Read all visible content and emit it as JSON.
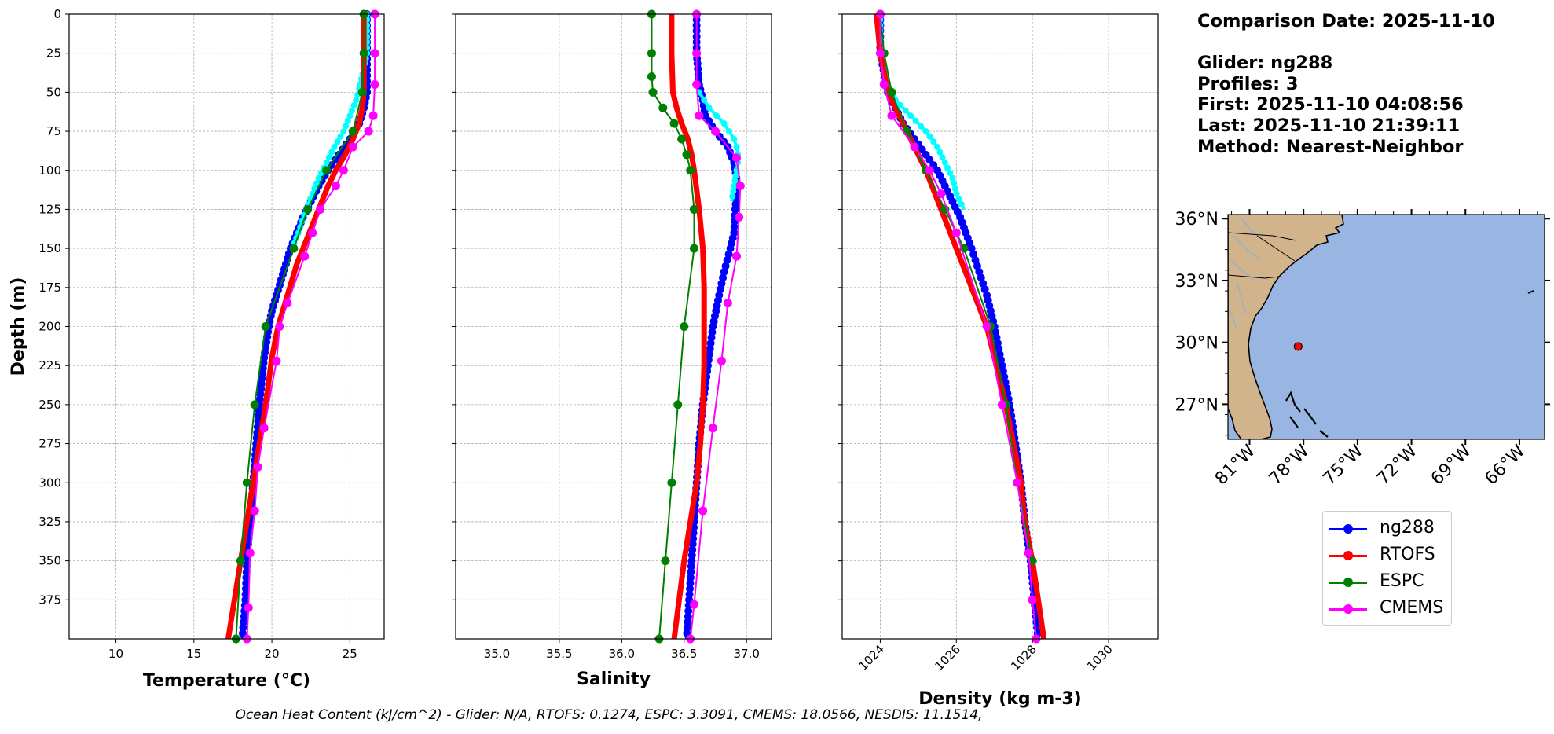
{
  "colors": {
    "glider": "#0000ff",
    "glider_alt": "#00ffff",
    "rtofs": "#ff0000",
    "espc": "#008000",
    "cmems": "#ff00ff",
    "land": "#d2b48c",
    "ocean": "#98b6e1",
    "rivers": "#9cb0c4",
    "grid": "#b0b0b0"
  },
  "info": {
    "date": "Comparison Date: 2025-11-10",
    "glider": "Glider: ng288",
    "profiles": "Profiles: 3",
    "first": "First: 2025-11-10 04:08:56",
    "last": "Last: 2025-11-10 21:39:11",
    "method": "Method: Nearest-Neighbor"
  },
  "legend": [
    {
      "label": "ng288",
      "color": "#0000ff"
    },
    {
      "label": "RTOFS",
      "color": "#ff0000"
    },
    {
      "label": "ESPC",
      "color": "#008000"
    },
    {
      "label": "CMEMS",
      "color": "#ff00ff"
    }
  ],
  "footer": "Ocean Heat Content (kJ/cm^2) - Glider: N/A,  RTOFS: 0.1274,  ESPC: 3.3091,  CMEMS: 18.0566,  NESDIS: 11.1514,",
  "chart_data": [
    {
      "type": "line",
      "panel": "temperature",
      "xlabel": "Temperature (°C)",
      "ylabel": "Depth (m)",
      "xlim": [
        7,
        27.2
      ],
      "ylim": [
        400,
        0
      ],
      "xticks": [
        10,
        15,
        20,
        25
      ],
      "yticks": [
        0,
        25,
        50,
        75,
        100,
        125,
        150,
        175,
        200,
        225,
        250,
        275,
        300,
        325,
        350,
        375
      ],
      "grid": true,
      "series": [
        {
          "name": "ng288",
          "color": "#0000ff",
          "depth": [
            0,
            25,
            50,
            60,
            70,
            80,
            90,
            100,
            110,
            120,
            130,
            140,
            150,
            160,
            170,
            180,
            190,
            200,
            220,
            250,
            275,
            300,
            325,
            350,
            375,
            400
          ],
          "values": [
            26.1,
            26.1,
            26.1,
            25.9,
            25.6,
            25.0,
            24.3,
            23.6,
            23.0,
            22.5,
            22.0,
            21.6,
            21.2,
            20.9,
            20.6,
            20.3,
            20.0,
            19.8,
            19.5,
            19.2,
            19.0,
            18.8,
            18.6,
            18.4,
            18.3,
            18.1
          ]
        },
        {
          "name": "ng288 (profile 2)",
          "color": "#00ffff",
          "depth": [
            0,
            25,
            48,
            55,
            65,
            75,
            85,
            95,
            105,
            115,
            125,
            140,
            150
          ],
          "values": [
            26.1,
            26.1,
            25.6,
            25.4,
            25.0,
            24.6,
            24.0,
            23.5,
            23.0,
            22.6,
            22.2,
            21.7,
            21.3
          ]
        },
        {
          "name": "RTOFS",
          "color": "#ff0000",
          "depth": [
            0,
            25,
            50,
            60,
            70,
            80,
            90,
            100,
            110,
            120,
            130,
            140,
            150,
            160,
            170,
            180,
            190,
            200,
            220,
            250,
            275,
            300,
            325,
            350,
            375,
            400
          ],
          "values": [
            25.9,
            25.9,
            25.9,
            25.8,
            25.6,
            25.2,
            24.7,
            24.1,
            23.6,
            23.2,
            22.8,
            22.4,
            22.0,
            21.6,
            21.3,
            21.0,
            20.7,
            20.4,
            20.0,
            19.6,
            19.2,
            18.8,
            18.4,
            18.0,
            17.6,
            17.2
          ]
        },
        {
          "name": "ESPC",
          "color": "#008000",
          "depth": [
            0,
            25,
            50,
            75,
            100,
            125,
            150,
            200,
            250,
            300,
            350,
            400
          ],
          "values": [
            25.9,
            25.9,
            25.8,
            25.2,
            23.5,
            22.3,
            21.4,
            19.6,
            18.9,
            18.4,
            18.0,
            17.7
          ]
        },
        {
          "name": "CMEMS",
          "color": "#ff00ff",
          "depth": [
            0,
            25,
            45,
            65,
            75,
            85,
            100,
            110,
            125,
            140,
            155,
            185,
            200,
            222,
            265,
            290,
            318,
            345,
            380,
            400
          ],
          "values": [
            26.6,
            26.6,
            26.6,
            26.5,
            26.2,
            25.2,
            24.6,
            24.1,
            23.1,
            22.6,
            22.1,
            21.0,
            20.5,
            20.3,
            19.5,
            19.1,
            18.9,
            18.6,
            18.5,
            18.4
          ]
        }
      ]
    },
    {
      "type": "line",
      "panel": "salinity",
      "xlabel": "Salinity",
      "xlim": [
        34.67,
        37.2
      ],
      "ylim": [
        400,
        0
      ],
      "xticks": [
        35.0,
        35.5,
        36.0,
        36.5,
        37.0
      ],
      "grid": true,
      "series": [
        {
          "name": "ng288",
          "color": "#0000ff",
          "depth": [
            0,
            25,
            45,
            55,
            65,
            75,
            85,
            95,
            105,
            115,
            125,
            140,
            150,
            165,
            180,
            200,
            225,
            250,
            275,
            300,
            325,
            350,
            375,
            400
          ],
          "values": [
            36.6,
            36.6,
            36.62,
            36.65,
            36.67,
            36.75,
            36.85,
            36.9,
            36.92,
            36.92,
            36.91,
            36.9,
            36.87,
            36.82,
            36.78,
            36.73,
            36.69,
            36.65,
            36.62,
            36.6,
            36.58,
            36.56,
            36.54,
            36.52
          ]
        },
        {
          "name": "ng288 (profile 2)",
          "color": "#00ffff",
          "depth": [
            50,
            55,
            60,
            65,
            70,
            75,
            80,
            85,
            90,
            95,
            100,
            110,
            120
          ],
          "values": [
            36.62,
            36.66,
            36.7,
            36.76,
            36.82,
            36.86,
            36.9,
            36.92,
            36.93,
            36.93,
            36.92,
            36.9,
            36.88
          ]
        },
        {
          "name": "RTOFS",
          "color": "#ff0000",
          "depth": [
            0,
            25,
            50,
            60,
            70,
            80,
            90,
            100,
            125,
            150,
            175,
            200,
            225,
            250,
            275,
            300,
            325,
            350,
            375,
            400
          ],
          "values": [
            36.4,
            36.4,
            36.41,
            36.44,
            36.48,
            36.53,
            36.56,
            36.58,
            36.62,
            36.65,
            36.66,
            36.66,
            36.66,
            36.65,
            36.63,
            36.6,
            36.55,
            36.5,
            36.46,
            36.42
          ]
        },
        {
          "name": "ESPC",
          "color": "#008000",
          "depth": [
            0,
            25,
            40,
            50,
            60,
            70,
            80,
            90,
            100,
            125,
            150,
            200,
            250,
            300,
            350,
            400
          ],
          "values": [
            36.24,
            36.24,
            36.24,
            36.25,
            36.33,
            36.42,
            36.48,
            36.52,
            36.55,
            36.58,
            36.58,
            36.5,
            36.45,
            36.4,
            36.35,
            36.3
          ]
        },
        {
          "name": "CMEMS",
          "color": "#ff00ff",
          "depth": [
            0,
            25,
            45,
            65,
            75,
            92,
            110,
            130,
            155,
            185,
            222,
            265,
            318,
            378,
            400
          ],
          "values": [
            36.6,
            36.6,
            36.6,
            36.62,
            36.75,
            36.92,
            36.95,
            36.94,
            36.92,
            36.85,
            36.8,
            36.73,
            36.65,
            36.58,
            36.55
          ]
        }
      ]
    },
    {
      "type": "line",
      "panel": "density",
      "xlabel": "Density (kg m-3)",
      "xlim": [
        1023.0,
        1031.3
      ],
      "ylim": [
        400,
        0
      ],
      "xticks": [
        1024,
        1026,
        1028,
        1030
      ],
      "grid": true,
      "series": [
        {
          "name": "ng288",
          "color": "#0000ff",
          "depth": [
            0,
            25,
            50,
            60,
            70,
            80,
            90,
            100,
            110,
            120,
            130,
            140,
            150,
            165,
            180,
            200,
            225,
            250,
            275,
            300,
            325,
            350,
            375,
            400
          ],
          "values": [
            1024.0,
            1024.0,
            1024.2,
            1024.4,
            1024.6,
            1024.9,
            1025.2,
            1025.5,
            1025.7,
            1025.9,
            1026.1,
            1026.25,
            1026.4,
            1026.6,
            1026.8,
            1027.0,
            1027.2,
            1027.4,
            1027.55,
            1027.7,
            1027.8,
            1027.95,
            1028.05,
            1028.15
          ]
        },
        {
          "name": "ng288 (profile 2)",
          "color": "#00ffff",
          "depth": [
            0,
            25,
            45,
            55,
            65,
            75,
            85,
            95,
            105,
            115,
            125
          ],
          "values": [
            1024.0,
            1024.0,
            1024.2,
            1024.4,
            1024.8,
            1025.2,
            1025.5,
            1025.7,
            1025.9,
            1026.0,
            1026.2
          ]
        },
        {
          "name": "RTOFS",
          "color": "#ff0000",
          "depth": [
            0,
            25,
            50,
            75,
            100,
            125,
            150,
            175,
            200,
            225,
            250,
            275,
            300,
            325,
            350,
            375,
            400
          ],
          "values": [
            1023.9,
            1024.0,
            1024.2,
            1024.7,
            1025.2,
            1025.6,
            1026.0,
            1026.4,
            1026.8,
            1027.05,
            1027.3,
            1027.5,
            1027.7,
            1027.8,
            1028.0,
            1028.15,
            1028.3
          ]
        },
        {
          "name": "ESPC",
          "color": "#008000",
          "depth": [
            0,
            25,
            50,
            75,
            100,
            125,
            150,
            200,
            250,
            300,
            350
          ],
          "values": [
            1024.0,
            1024.1,
            1024.3,
            1024.7,
            1025.2,
            1025.7,
            1026.2,
            1026.9,
            1027.3,
            1027.6,
            1028.0
          ]
        },
        {
          "name": "CMEMS",
          "color": "#ff00ff",
          "depth": [
            0,
            25,
            45,
            65,
            85,
            100,
            115,
            140,
            200,
            250,
            300,
            345,
            375,
            400
          ],
          "values": [
            1024.0,
            1024.0,
            1024.1,
            1024.3,
            1024.9,
            1025.3,
            1025.6,
            1026.0,
            1026.8,
            1027.2,
            1027.6,
            1027.9,
            1028.0,
            1028.1
          ]
        }
      ]
    }
  ],
  "map": {
    "lat_ticks": [
      "36°N",
      "33°N",
      "30°N",
      "27°N"
    ],
    "lon_ticks": [
      "81°W",
      "78°W",
      "75°W",
      "72°W",
      "69°W",
      "66°W"
    ],
    "marker": {
      "lat": 29.8,
      "lon": -78.3,
      "color": "#ff0000"
    }
  }
}
